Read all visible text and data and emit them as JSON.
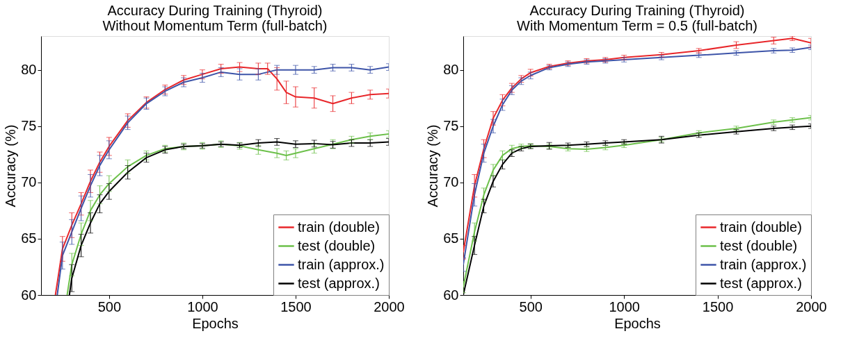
{
  "chart_data": [
    {
      "type": "line",
      "title": [
        "Accuracy During Training (Thyroid)",
        "Without Momentum Term (full-batch)"
      ],
      "xlabel": "Epochs",
      "ylabel": "Accuracy (%)",
      "xlim": [
        135,
        2000
      ],
      "ylim": [
        60,
        83
      ],
      "xticks": [
        500,
        1000,
        1500,
        2000
      ],
      "yticks": [
        60,
        65,
        70,
        75,
        80
      ],
      "grid": false,
      "legend": "bottom right",
      "marker": "none",
      "line_style": "solid",
      "series": [
        {
          "name": "train (double)",
          "color": "#e8262a",
          "x": [
            212,
            250,
            300,
            350,
            400,
            450,
            500,
            600,
            700,
            800,
            900,
            1000,
            1100,
            1200,
            1300,
            1350,
            1400,
            1450,
            1500,
            1600,
            1700,
            1800,
            1900,
            2000
          ],
          "values": [
            60,
            64.1,
            66.2,
            68.1,
            70.1,
            71.8,
            73.2,
            75.5,
            77.1,
            78.25,
            79.1,
            79.6,
            80.1,
            80.25,
            80.1,
            80.1,
            79.2,
            78.0,
            77.6,
            77.5,
            77.0,
            77.5,
            77.8,
            77.9
          ],
          "errors": [
            null,
            1.1,
            1.1,
            1.0,
            1.0,
            0.9,
            0.8,
            0.6,
            0.5,
            0.4,
            0.4,
            0.4,
            0.4,
            0.4,
            0.5,
            0.5,
            1.0,
            1.0,
            0.9,
            0.9,
            0.7,
            0.5,
            0.4,
            0.4
          ]
        },
        {
          "name": "test (double)",
          "color": "#6cc04a",
          "x": [
            275,
            300,
            350,
            400,
            450,
            500,
            600,
            700,
            800,
            900,
            1000,
            1100,
            1200,
            1300,
            1400,
            1450,
            1500,
            1600,
            1700,
            1800,
            1900,
            2000
          ],
          "values": [
            60,
            62.7,
            65.4,
            67.5,
            68.9,
            69.9,
            71.4,
            72.4,
            73.0,
            73.2,
            73.25,
            73.4,
            73.25,
            72.9,
            72.6,
            72.4,
            72.6,
            73.0,
            73.4,
            73.8,
            74.1,
            74.3
          ],
          "errors": [
            null,
            1.0,
            1.0,
            0.9,
            0.8,
            0.7,
            0.6,
            0.4,
            0.3,
            0.3,
            0.3,
            0.3,
            0.3,
            0.4,
            0.4,
            0.4,
            0.4,
            0.4,
            0.4,
            0.3,
            0.3,
            0.3
          ]
        },
        {
          "name": "train (approx.)",
          "color": "#3d54a8",
          "x": [
            222,
            250,
            300,
            350,
            400,
            450,
            500,
            600,
            700,
            800,
            900,
            1000,
            1100,
            1200,
            1300,
            1400,
            1500,
            1600,
            1700,
            1800,
            1900,
            2000
          ],
          "values": [
            60,
            63.5,
            65.6,
            67.7,
            69.7,
            71.5,
            72.9,
            75.3,
            77.0,
            78.1,
            78.9,
            79.3,
            79.8,
            79.6,
            79.6,
            80.0,
            80.0,
            80.0,
            80.2,
            80.2,
            80.0,
            80.25
          ],
          "errors": [
            null,
            1.2,
            1.1,
            1.1,
            1.0,
            0.9,
            0.8,
            0.6,
            0.5,
            0.4,
            0.4,
            0.4,
            0.4,
            0.5,
            0.5,
            0.4,
            0.4,
            0.3,
            0.3,
            0.3,
            0.3,
            0.3
          ]
        },
        {
          "name": "test (approx.)",
          "color": "#000000",
          "x": [
            287,
            300,
            350,
            400,
            450,
            500,
            600,
            700,
            800,
            900,
            1000,
            1100,
            1200,
            1300,
            1400,
            1500,
            1600,
            1700,
            1800,
            1900,
            2000
          ],
          "values": [
            60,
            61.5,
            64.4,
            66.4,
            68.1,
            69.2,
            70.9,
            72.2,
            72.9,
            73.2,
            73.25,
            73.4,
            73.3,
            73.5,
            73.6,
            73.4,
            73.45,
            73.35,
            73.5,
            73.5,
            73.6
          ],
          "errors": [
            null,
            1.2,
            1.0,
            0.9,
            0.8,
            0.7,
            0.6,
            0.4,
            0.3,
            0.2,
            0.2,
            0.2,
            0.2,
            0.3,
            0.3,
            0.3,
            0.3,
            0.3,
            0.3,
            0.3,
            0.3
          ]
        }
      ]
    },
    {
      "type": "line",
      "title": [
        "Accuracy During Training (Thyroid)",
        "With Momentum Term = 0.5 (full-batch)"
      ],
      "xlabel": "Epochs",
      "ylabel": "Accuracy (%)",
      "xlim": [
        140,
        2000
      ],
      "ylim": [
        60,
        83
      ],
      "xticks": [
        500,
        1000,
        1500,
        2000
      ],
      "yticks": [
        60,
        65,
        70,
        75,
        80
      ],
      "grid": false,
      "legend": "bottom right",
      "marker": "none",
      "line_style": "solid",
      "series": [
        {
          "name": "train (double)",
          "color": "#e8262a",
          "x": [
            140,
            200,
            250,
            300,
            350,
            400,
            450,
            500,
            600,
            700,
            800,
            900,
            1000,
            1200,
            1400,
            1600,
            1800,
            1900,
            2000
          ],
          "values": [
            63.8,
            69.7,
            73.0,
            75.7,
            77.3,
            78.4,
            79.2,
            79.75,
            80.3,
            80.6,
            80.8,
            80.9,
            81.1,
            81.35,
            81.7,
            82.2,
            82.6,
            82.8,
            82.4
          ],
          "errors": [
            0.6,
            1.0,
            0.8,
            0.6,
            0.5,
            0.4,
            0.3,
            0.3,
            0.2,
            0.2,
            0.2,
            0.2,
            0.2,
            0.2,
            0.2,
            0.3,
            0.3,
            0.2,
            0.4
          ]
        },
        {
          "name": "test (double)",
          "color": "#6cc04a",
          "x": [
            140,
            200,
            250,
            300,
            350,
            400,
            450,
            500,
            600,
            700,
            800,
            900,
            1000,
            1200,
            1400,
            1600,
            1800,
            1900,
            2000
          ],
          "values": [
            60.7,
            65.6,
            68.9,
            71.1,
            72.4,
            73.0,
            73.2,
            73.25,
            73.2,
            73.0,
            72.95,
            73.1,
            73.3,
            73.8,
            74.4,
            74.8,
            75.35,
            75.55,
            75.75
          ],
          "errors": [
            0.5,
            0.8,
            0.6,
            0.5,
            0.4,
            0.3,
            0.2,
            0.2,
            0.2,
            0.2,
            0.2,
            0.2,
            0.2,
            0.2,
            0.2,
            0.2,
            0.2,
            0.2,
            0.2
          ]
        },
        {
          "name": "train (approx.)",
          "color": "#3d54a8",
          "x": [
            140,
            200,
            250,
            300,
            350,
            400,
            450,
            500,
            600,
            700,
            800,
            900,
            1000,
            1200,
            1400,
            1600,
            1800,
            1900,
            2000
          ],
          "values": [
            62.7,
            68.9,
            72.6,
            75.0,
            76.9,
            78.2,
            79.0,
            79.5,
            80.2,
            80.5,
            80.7,
            80.8,
            80.9,
            81.1,
            81.3,
            81.5,
            81.7,
            81.75,
            82.0
          ],
          "errors": [
            0.6,
            1.0,
            0.8,
            0.6,
            0.5,
            0.4,
            0.3,
            0.3,
            0.2,
            0.2,
            0.2,
            0.2,
            0.2,
            0.2,
            0.2,
            0.2,
            0.2,
            0.2,
            0.2
          ]
        },
        {
          "name": "test (approx.)",
          "color": "#000000",
          "x": [
            140,
            200,
            250,
            300,
            350,
            400,
            450,
            500,
            600,
            700,
            800,
            900,
            1000,
            1200,
            1400,
            1600,
            1800,
            1900,
            2000
          ],
          "values": [
            60.0,
            64.4,
            67.9,
            70.1,
            71.6,
            72.6,
            73.0,
            73.2,
            73.25,
            73.3,
            73.4,
            73.5,
            73.6,
            73.8,
            74.2,
            74.5,
            74.8,
            74.9,
            75.0
          ],
          "errors": [
            null,
            0.8,
            0.6,
            0.5,
            0.4,
            0.3,
            0.2,
            0.2,
            0.3,
            0.2,
            0.2,
            0.2,
            0.2,
            0.3,
            0.2,
            0.2,
            0.2,
            0.2,
            0.2
          ]
        }
      ]
    }
  ]
}
